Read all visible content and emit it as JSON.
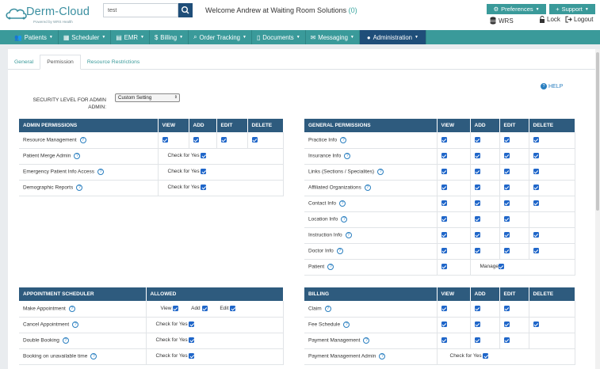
{
  "app": {
    "brand": "Derm-Cloud",
    "tagline": "Powered by WRS Health"
  },
  "search": {
    "value": "test",
    "placeholder": ""
  },
  "header": {
    "welcome": "Welcome Andrew at Waiting Room Solutions",
    "count": "(0)",
    "preferences": "Preferences",
    "support": "Support",
    "wrs": "WRS",
    "lock": "Lock",
    "logout": "Logout"
  },
  "nav": [
    {
      "label": "Patients",
      "icon": "users-icon"
    },
    {
      "label": "Scheduler",
      "icon": "calendar-icon"
    },
    {
      "label": "EMR",
      "icon": "file-medical-icon"
    },
    {
      "label": "Billing",
      "icon": "dollar-icon"
    },
    {
      "label": "Order Tracking",
      "icon": "search-icon"
    },
    {
      "label": "Documents",
      "icon": "document-icon"
    },
    {
      "label": "Messaging",
      "icon": "envelope-icon"
    },
    {
      "label": "Administration",
      "icon": "user-icon"
    }
  ],
  "tabs": [
    "General",
    "Permission",
    "Resource Restrictions"
  ],
  "help": "HELP",
  "security": {
    "label": "SECURITY LEVEL FOR ADMIN ADMIN:",
    "selected": "Custom Setting"
  },
  "common": {
    "check_for_yes": "Check for Yes",
    "manage": "Manage"
  },
  "admin_permissions": {
    "headers": [
      "ADMIN PERMISSIONS",
      "VIEW",
      "ADD",
      "EDIT",
      "DELETE"
    ],
    "rows": [
      {
        "label": "Resource Management",
        "type": "vaed"
      },
      {
        "label": "Patient Merge Admin",
        "type": "yes"
      },
      {
        "label": "Emergency Patient Info Access",
        "type": "yes"
      },
      {
        "label": "Demographic Reports",
        "type": "yes"
      }
    ]
  },
  "general_permissions": {
    "headers": [
      "GENERAL PERMISSIONS",
      "VIEW",
      "ADD",
      "EDIT",
      "DELETE"
    ],
    "rows": [
      {
        "label": "Practice Info",
        "checks": [
          true,
          true,
          true,
          true
        ]
      },
      {
        "label": "Insurance Info",
        "checks": [
          true,
          true,
          true,
          true
        ]
      },
      {
        "label": "Links (Sections / Specialites)",
        "checks": [
          true,
          true,
          true,
          true
        ]
      },
      {
        "label": "Affiliated Organizations",
        "checks": [
          true,
          true,
          true,
          true
        ]
      },
      {
        "label": "Contact Info",
        "checks": [
          true,
          true,
          true,
          true
        ]
      },
      {
        "label": "Location Info",
        "checks": [
          true,
          true,
          true,
          false
        ]
      },
      {
        "label": "Instruction Info",
        "checks": [
          true,
          true,
          true,
          true
        ]
      },
      {
        "label": "Doctor Info",
        "checks": [
          true,
          true,
          true,
          true
        ]
      },
      {
        "label": "Patient",
        "checks": "manage"
      }
    ]
  },
  "appointment_scheduler": {
    "headers": [
      "APPOINTMENT SCHEDULER",
      "ALLOWED"
    ],
    "inline_labels": [
      "View",
      "Add",
      "Edit"
    ],
    "rows": [
      {
        "label": "Make Appointment",
        "type": "vae"
      },
      {
        "label": "Cancel Appointment",
        "type": "yes"
      },
      {
        "label": "Double Booking",
        "type": "yes"
      },
      {
        "label": "Booking on unavailable time",
        "type": "yes"
      }
    ]
  },
  "billing": {
    "headers": [
      "BILLING",
      "VIEW",
      "ADD",
      "EDIT",
      "DELETE"
    ],
    "rows": [
      {
        "label": "Claim",
        "checks": [
          true,
          true,
          true,
          false
        ]
      },
      {
        "label": "Fee Schedule",
        "checks": [
          true,
          true,
          true,
          true
        ]
      },
      {
        "label": "Payment Management",
        "checks": [
          true,
          true,
          true,
          false
        ]
      },
      {
        "label": "Payment Management Admin",
        "checks": "yes"
      }
    ]
  },
  "colors": {
    "teal": "#3a9a9a",
    "navy": "#1f4e79",
    "table_header": "#2e5b7e",
    "checkbox": "#1f66c9",
    "link_blue": "#2a7fc0"
  }
}
